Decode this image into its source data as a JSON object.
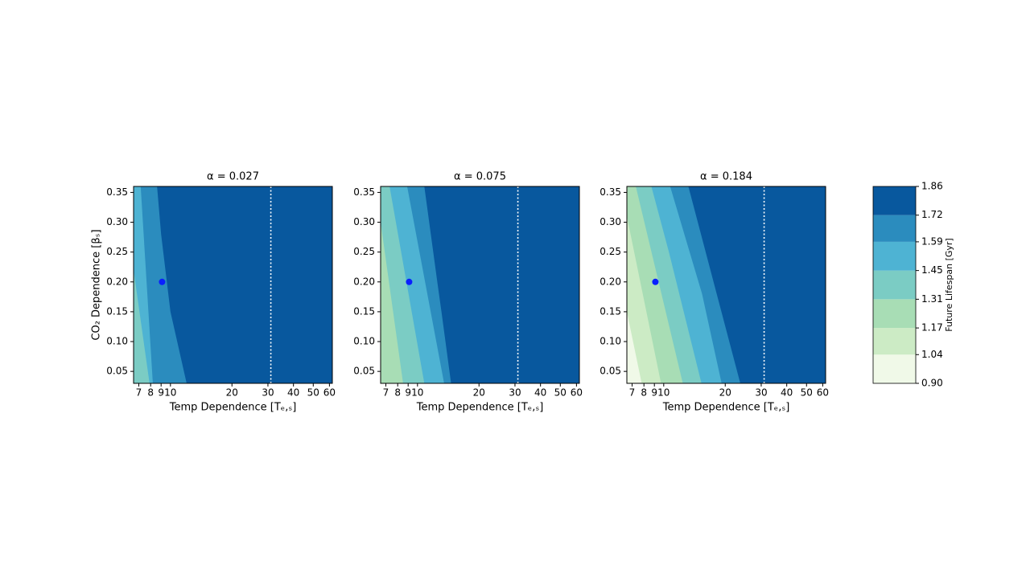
{
  "chart_data": [
    {
      "type": "contour",
      "title": "α = 0.027",
      "xlabel": "Temp Dependence [Tₑ,ₛ]",
      "ylabel": "CO₂ Dependence [βₛ]",
      "xscale": "log",
      "xlim": [
        6.6,
        62
      ],
      "ylim": [
        0.03,
        0.36
      ],
      "xticks": [
        7,
        8,
        9,
        10,
        20,
        30,
        40,
        50,
        60
      ],
      "yticks": [
        0.05,
        {
          "value": 0.1,
          "label": "0.10"
        },
        0.15,
        {
          "value": 0.2,
          "label": "0.20"
        },
        0.25,
        {
          "value": 0.3,
          "label": "0.30"
        },
        0.35
      ],
      "contour_lines": [
        {
          "level": 1.72,
          "x": [
            8.6,
            9.0,
            10.0,
            12.0
          ],
          "y": [
            0.36,
            0.28,
            0.15,
            0.03
          ]
        },
        {
          "level": 1.59,
          "x": [
            7.15,
            8.2
          ],
          "y": [
            0.36,
            0.03
          ]
        },
        {
          "level": 1.45,
          "x": [
            6.6,
            7.9
          ],
          "y": [
            0.22,
            0.03
          ]
        }
      ],
      "marker": {
        "x": 9.1,
        "y": 0.2,
        "color": "#0a1fff"
      },
      "vline": {
        "x": 31,
        "color": "#ffffff"
      }
    },
    {
      "type": "contour",
      "title": "α = 0.075",
      "xlabel": "Temp Dependence [Tₑ,ₛ]",
      "xscale": "log",
      "xlim": [
        6.6,
        62
      ],
      "ylim": [
        0.03,
        0.36
      ],
      "xticks": [
        7,
        8,
        9,
        10,
        20,
        30,
        40,
        50,
        60
      ],
      "yticks": [
        0.05,
        {
          "value": 0.1,
          "label": "0.10"
        },
        0.15,
        {
          "value": 0.2,
          "label": "0.20"
        },
        0.25,
        {
          "value": 0.3,
          "label": "0.30"
        },
        0.35
      ],
      "contour_lines": [
        {
          "level": 1.72,
          "x": [
            10.8,
            12.5,
            13.1,
            14.6
          ],
          "y": [
            0.36,
            0.2,
            0.15,
            0.03
          ]
        },
        {
          "level": 1.59,
          "x": [
            8.9,
            13.5
          ],
          "y": [
            0.36,
            0.03
          ]
        },
        {
          "level": 1.45,
          "x": [
            7.3,
            10.8
          ],
          "y": [
            0.36,
            0.03
          ]
        },
        {
          "level": 1.31,
          "x": [
            6.6,
            8.5
          ],
          "y": [
            0.3,
            0.03
          ]
        }
      ],
      "marker": {
        "x": 9.1,
        "y": 0.2,
        "color": "#0a1fff"
      },
      "vline": {
        "x": 31,
        "color": "#ffffff"
      }
    },
    {
      "type": "contour",
      "title": "α = 0.184",
      "xlabel": "Temp Dependence [Tₑ,ₛ]",
      "xscale": "log",
      "xlim": [
        6.6,
        62
      ],
      "ylim": [
        0.03,
        0.36
      ],
      "xticks": [
        7,
        8,
        9,
        10,
        20,
        30,
        40,
        50,
        60
      ],
      "yticks": [
        0.05,
        {
          "value": 0.1,
          "label": "0.10"
        },
        0.15,
        {
          "value": 0.2,
          "label": "0.20"
        },
        0.25,
        {
          "value": 0.3,
          "label": "0.30"
        },
        0.35
      ],
      "contour_lines": [
        {
          "level": 1.72,
          "x": [
            13.2,
            23.7
          ],
          "y": [
            0.36,
            0.03
          ]
        },
        {
          "level": 1.59,
          "x": [
            10.75,
            15.4,
            19.2
          ],
          "y": [
            0.36,
            0.18,
            0.03
          ]
        },
        {
          "level": 1.45,
          "x": [
            8.7,
            10.6,
            15.3
          ],
          "y": [
            0.36,
            0.25,
            0.03
          ]
        },
        {
          "level": 1.31,
          "x": [
            7.3,
            12.4
          ],
          "y": [
            0.36,
            0.03
          ]
        },
        {
          "level": 1.17,
          "x": [
            6.6,
            9.7
          ],
          "y": [
            0.31,
            0.03
          ]
        },
        {
          "level": 1.04,
          "x": [
            6.6,
            7.8
          ],
          "y": [
            0.15,
            0.03
          ]
        }
      ],
      "marker": {
        "x": 9.1,
        "y": 0.2,
        "color": "#0a1fff"
      },
      "vline": {
        "x": 31,
        "color": "#ffffff"
      }
    }
  ],
  "colorbar": {
    "label": "Future Lifespan [Gyr]",
    "levels": [
      {
        "value": 0.9,
        "label": "0.90"
      },
      1.04,
      1.17,
      1.31,
      1.45,
      1.59,
      1.72,
      1.86
    ],
    "colors": [
      "#f0f9e8",
      "#ccebc5",
      "#a8ddb5",
      "#7bccc4",
      "#4eb3d3",
      "#2b8cbe",
      "#08589e"
    ]
  }
}
